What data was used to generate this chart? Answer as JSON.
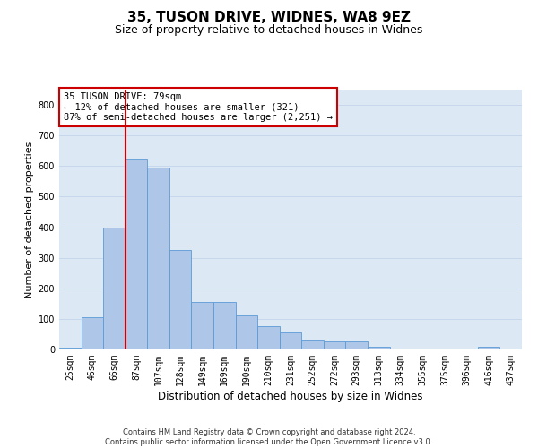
{
  "title1": "35, TUSON DRIVE, WIDNES, WA8 9EZ",
  "title2": "Size of property relative to detached houses in Widnes",
  "xlabel": "Distribution of detached houses by size in Widnes",
  "ylabel": "Number of detached properties",
  "categories": [
    "25sqm",
    "46sqm",
    "66sqm",
    "87sqm",
    "107sqm",
    "128sqm",
    "149sqm",
    "169sqm",
    "190sqm",
    "210sqm",
    "231sqm",
    "252sqm",
    "272sqm",
    "293sqm",
    "313sqm",
    "334sqm",
    "355sqm",
    "375sqm",
    "396sqm",
    "416sqm",
    "437sqm"
  ],
  "values": [
    5,
    105,
    400,
    620,
    595,
    325,
    155,
    155,
    110,
    75,
    55,
    30,
    25,
    25,
    10,
    0,
    0,
    0,
    0,
    10,
    0
  ],
  "bar_color": "#aec6e8",
  "bar_edgecolor": "#5b9bd5",
  "vline_color": "#cc0000",
  "annotation_text": "35 TUSON DRIVE: 79sqm\n← 12% of detached houses are smaller (321)\n87% of semi-detached houses are larger (2,251) →",
  "annotation_box_color": "#ffffff",
  "annotation_box_edgecolor": "#cc0000",
  "ylim": [
    0,
    850
  ],
  "yticks": [
    0,
    100,
    200,
    300,
    400,
    500,
    600,
    700,
    800
  ],
  "grid_color": "#c8d8ec",
  "background_color": "#dce9f5",
  "footer": "Contains HM Land Registry data © Crown copyright and database right 2024.\nContains public sector information licensed under the Open Government Licence v3.0.",
  "title1_fontsize": 11,
  "title2_fontsize": 9,
  "xlabel_fontsize": 8.5,
  "ylabel_fontsize": 8,
  "tick_fontsize": 7,
  "annotation_fontsize": 7.5,
  "footer_fontsize": 6
}
